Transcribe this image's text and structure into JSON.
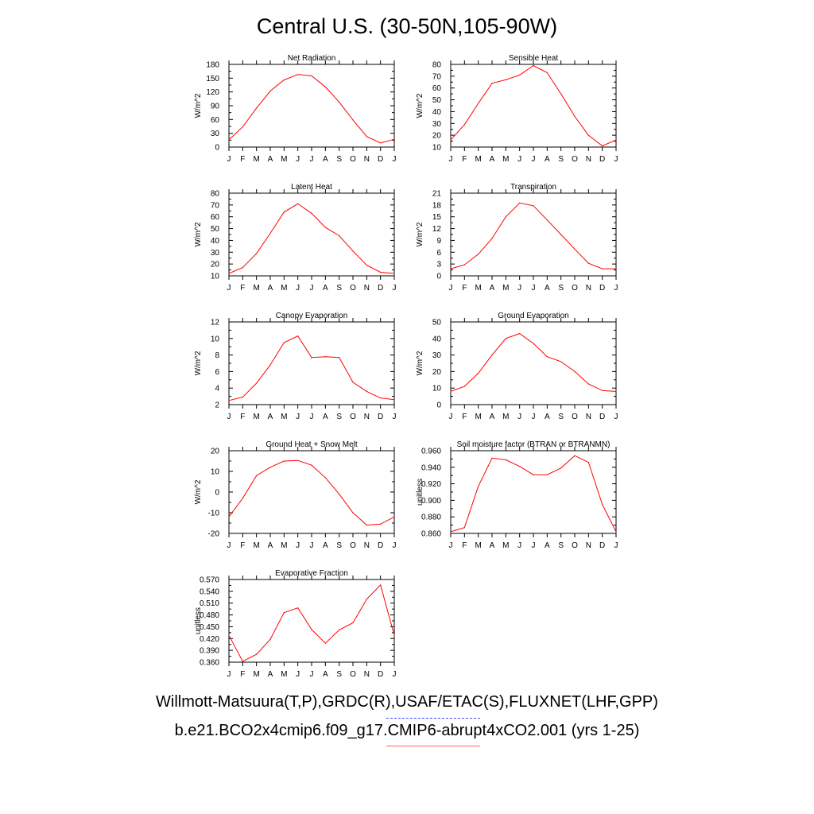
{
  "page": {
    "title": "Central U.S. (30-50N,105-90W)",
    "footer_obs": "Willmott-Matsuura(T,P),GRDC(R),USAF/ETAC(S),FLUXNET(LHF,GPP)",
    "footer_model": "b.e21.BCO2x4cmip6.f09_g17.CMIP6-abrupt4xCO2.001 (yrs 1-25)",
    "obs_line_color": "#4a4aff",
    "model_line_color": "#ff0000"
  },
  "months": [
    "J",
    "F",
    "M",
    "A",
    "M",
    "J",
    "J",
    "A",
    "S",
    "O",
    "N",
    "D",
    "J"
  ],
  "chart_data": [
    {
      "type": "line",
      "title": "Net Radiation",
      "xlabel": "",
      "ylabel": "W/m^2",
      "ylim": [
        0,
        180
      ],
      "yticks": [
        "0",
        "30",
        "60",
        "90",
        "120",
        "150",
        "180"
      ],
      "x": [
        "J",
        "F",
        "M",
        "A",
        "M",
        "J",
        "J",
        "A",
        "S",
        "O",
        "N",
        "D",
        "J"
      ],
      "series": [
        {
          "values": [
            16,
            44,
            85,
            122,
            146,
            158,
            155,
            131,
            98,
            59,
            23,
            9,
            17
          ],
          "color": "#ff0000"
        }
      ]
    },
    {
      "type": "line",
      "title": "Sensible Heat",
      "xlabel": "",
      "ylabel": "W/m^2",
      "ylim": [
        10,
        80
      ],
      "yticks": [
        "10",
        "20",
        "30",
        "40",
        "50",
        "60",
        "70",
        "80"
      ],
      "x": [
        "J",
        "F",
        "M",
        "A",
        "M",
        "J",
        "J",
        "A",
        "S",
        "O",
        "N",
        "D",
        "J"
      ],
      "series": [
        {
          "values": [
            16,
            29,
            47,
            64,
            67,
            71,
            79,
            73,
            55,
            36,
            20,
            11,
            16
          ],
          "color": "#ff0000"
        }
      ]
    },
    {
      "type": "line",
      "title": "Latent Heat",
      "xlabel": "",
      "ylabel": "W/m^2",
      "ylim": [
        10,
        80
      ],
      "yticks": [
        "10",
        "20",
        "30",
        "40",
        "50",
        "60",
        "70",
        "80"
      ],
      "x": [
        "J",
        "F",
        "M",
        "A",
        "M",
        "J",
        "J",
        "A",
        "S",
        "O",
        "N",
        "D",
        "J"
      ],
      "series": [
        {
          "values": [
            12,
            17,
            29,
            46,
            64,
            71,
            63,
            51,
            44,
            31,
            19,
            13,
            12
          ],
          "color": "#ff0000"
        }
      ]
    },
    {
      "type": "line",
      "title": "Transpiration",
      "xlabel": "",
      "ylabel": "W/m^2",
      "ylim": [
        0,
        21
      ],
      "yticks": [
        "0",
        "3",
        "6",
        "9",
        "12",
        "15",
        "18",
        "21"
      ],
      "x": [
        "J",
        "F",
        "M",
        "A",
        "M",
        "J",
        "J",
        "A",
        "S",
        "O",
        "N",
        "D",
        "J"
      ],
      "series": [
        {
          "values": [
            1.8,
            2.8,
            5.5,
            9.5,
            15,
            18.5,
            17.8,
            14.2,
            10.5,
            6.8,
            3.2,
            1.8,
            1.8
          ],
          "color": "#ff0000"
        }
      ]
    },
    {
      "type": "line",
      "title": "Canopy Evaporation",
      "xlabel": "",
      "ylabel": "W/m^2",
      "ylim": [
        2,
        12
      ],
      "yticks": [
        "2",
        "4",
        "6",
        "8",
        "10",
        "12"
      ],
      "x": [
        "J",
        "F",
        "M",
        "A",
        "M",
        "J",
        "J",
        "A",
        "S",
        "O",
        "N",
        "D",
        "J"
      ],
      "series": [
        {
          "values": [
            2.5,
            2.9,
            4.6,
            6.8,
            9.5,
            10.3,
            7.7,
            7.8,
            7.7,
            4.7,
            3.6,
            2.8,
            2.6
          ],
          "color": "#ff0000"
        }
      ]
    },
    {
      "type": "line",
      "title": "Ground Evaporation",
      "xlabel": "",
      "ylabel": "W/m^2",
      "ylim": [
        0,
        50
      ],
      "yticks": [
        "0",
        "10",
        "20",
        "30",
        "40",
        "50"
      ],
      "x": [
        "J",
        "F",
        "M",
        "A",
        "M",
        "J",
        "J",
        "A",
        "S",
        "O",
        "N",
        "D",
        "J"
      ],
      "series": [
        {
          "values": [
            8,
            11,
            19,
            30,
            40,
            43,
            37,
            29,
            26,
            20,
            12.5,
            8.5,
            8
          ],
          "color": "#ff0000"
        }
      ]
    },
    {
      "type": "line",
      "title": "Ground Heat + Snow Melt",
      "xlabel": "",
      "ylabel": "W/m^2",
      "ylim": [
        -20,
        20
      ],
      "yticks": [
        "-20",
        "-10",
        "0",
        "10",
        "20"
      ],
      "x": [
        "J",
        "F",
        "M",
        "A",
        "M",
        "J",
        "J",
        "A",
        "S",
        "O",
        "N",
        "D",
        "J"
      ],
      "series": [
        {
          "values": [
            -12,
            -3,
            8,
            12,
            15,
            15.3,
            13,
            7,
            -1,
            -10,
            -16,
            -15.5,
            -12
          ],
          "color": "#ff0000"
        }
      ]
    },
    {
      "type": "line",
      "title": "Soil moisture factor (BTRAN or BTRANMN)",
      "xlabel": "",
      "ylabel": "unitless",
      "ylim": [
        0.86,
        0.96
      ],
      "yticks": [
        "0.860",
        "0.880",
        "0.900",
        "0.920",
        "0.940",
        "0.960"
      ],
      "x": [
        "J",
        "F",
        "M",
        "A",
        "M",
        "J",
        "J",
        "A",
        "S",
        "O",
        "N",
        "D",
        "J"
      ],
      "series": [
        {
          "values": [
            0.862,
            0.867,
            0.917,
            0.951,
            0.949,
            0.941,
            0.931,
            0.931,
            0.939,
            0.954,
            0.946,
            0.895,
            0.862
          ],
          "color": "#ff0000"
        }
      ]
    },
    {
      "type": "line",
      "title": "Evaporative Fraction",
      "xlabel": "",
      "ylabel": "unitless",
      "ylim": [
        0.36,
        0.57
      ],
      "yticks": [
        "0.360",
        "0.390",
        "0.420",
        "0.450",
        "0.480",
        "0.510",
        "0.540",
        "0.570"
      ],
      "x": [
        "J",
        "F",
        "M",
        "A",
        "M",
        "J",
        "J",
        "A",
        "S",
        "O",
        "N",
        "D",
        "J"
      ],
      "series": [
        {
          "values": [
            0.428,
            0.362,
            0.38,
            0.418,
            0.486,
            0.498,
            0.443,
            0.408,
            0.442,
            0.46,
            0.52,
            0.556,
            0.428
          ],
          "color": "#ff0000"
        }
      ]
    }
  ]
}
